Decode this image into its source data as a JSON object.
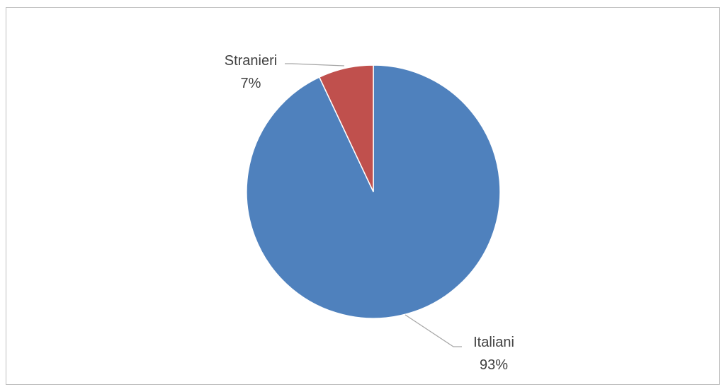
{
  "chart_data": {
    "type": "pie",
    "slices": [
      {
        "label": "Italiani",
        "value": 93,
        "value_label": "93%",
        "color": "#4F81BD"
      },
      {
        "label": "Stranieri",
        "value": 7,
        "value_label": "7%",
        "color": "#C0504D"
      }
    ],
    "data_labels": "category and percentage, outside with leader lines",
    "legend": "none"
  }
}
